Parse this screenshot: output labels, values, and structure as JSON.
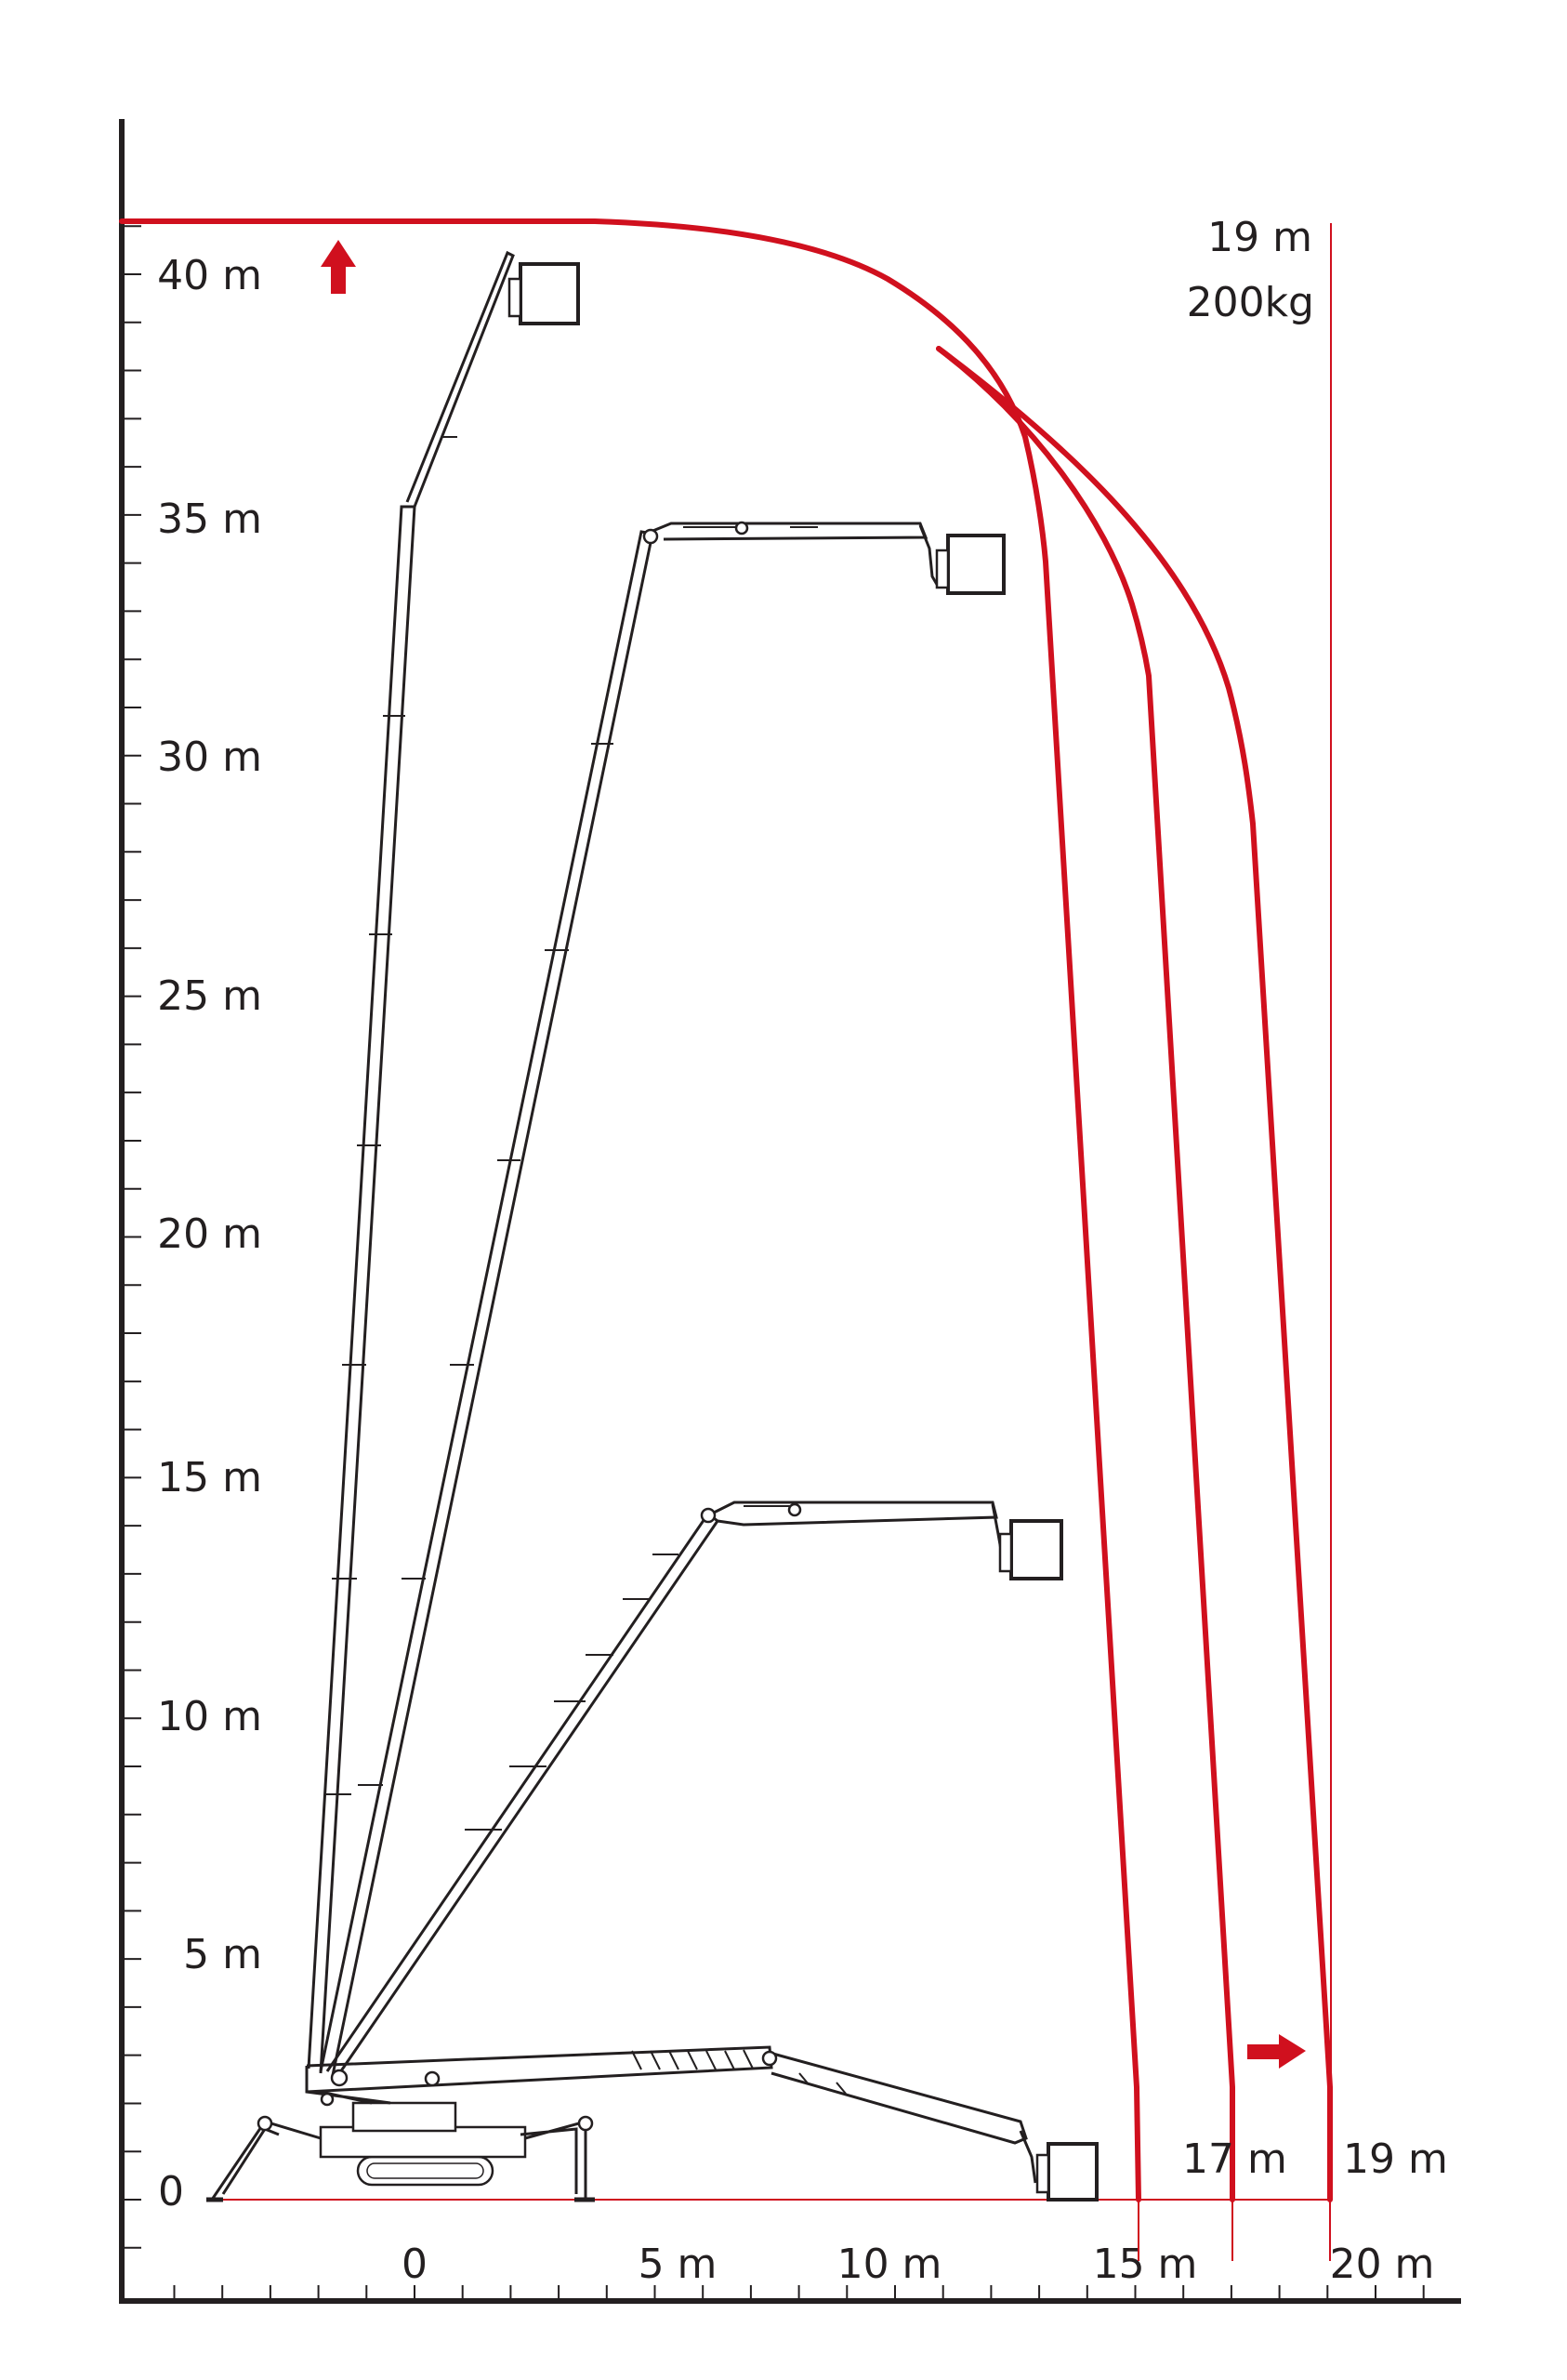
{
  "y_axis": {
    "tick_labels": [
      "0",
      "5 m",
      "10 m",
      "15 m",
      "20 m",
      "25 m",
      "30 m",
      "35 m",
      "40 m"
    ]
  },
  "x_axis": {
    "tick_labels": [
      "0",
      "5 m",
      "10 m",
      "15 m",
      "20 m"
    ]
  },
  "annotations": {
    "top_reach_label": "19 m",
    "top_load_label": "200kg",
    "ground_reach_17": "17 m",
    "ground_reach_19": "19 m"
  },
  "working_envelopes": [
    {
      "reach_at_ground": "15 m"
    },
    {
      "reach_at_ground": "17 m"
    },
    {
      "reach_at_ground": "19 m"
    }
  ],
  "colors": {
    "accent": "#d0101e",
    "ink": "#231f20"
  },
  "icons": {
    "up_arrow": "arrow-up-icon",
    "right_arrow": "arrow-right-icon"
  }
}
